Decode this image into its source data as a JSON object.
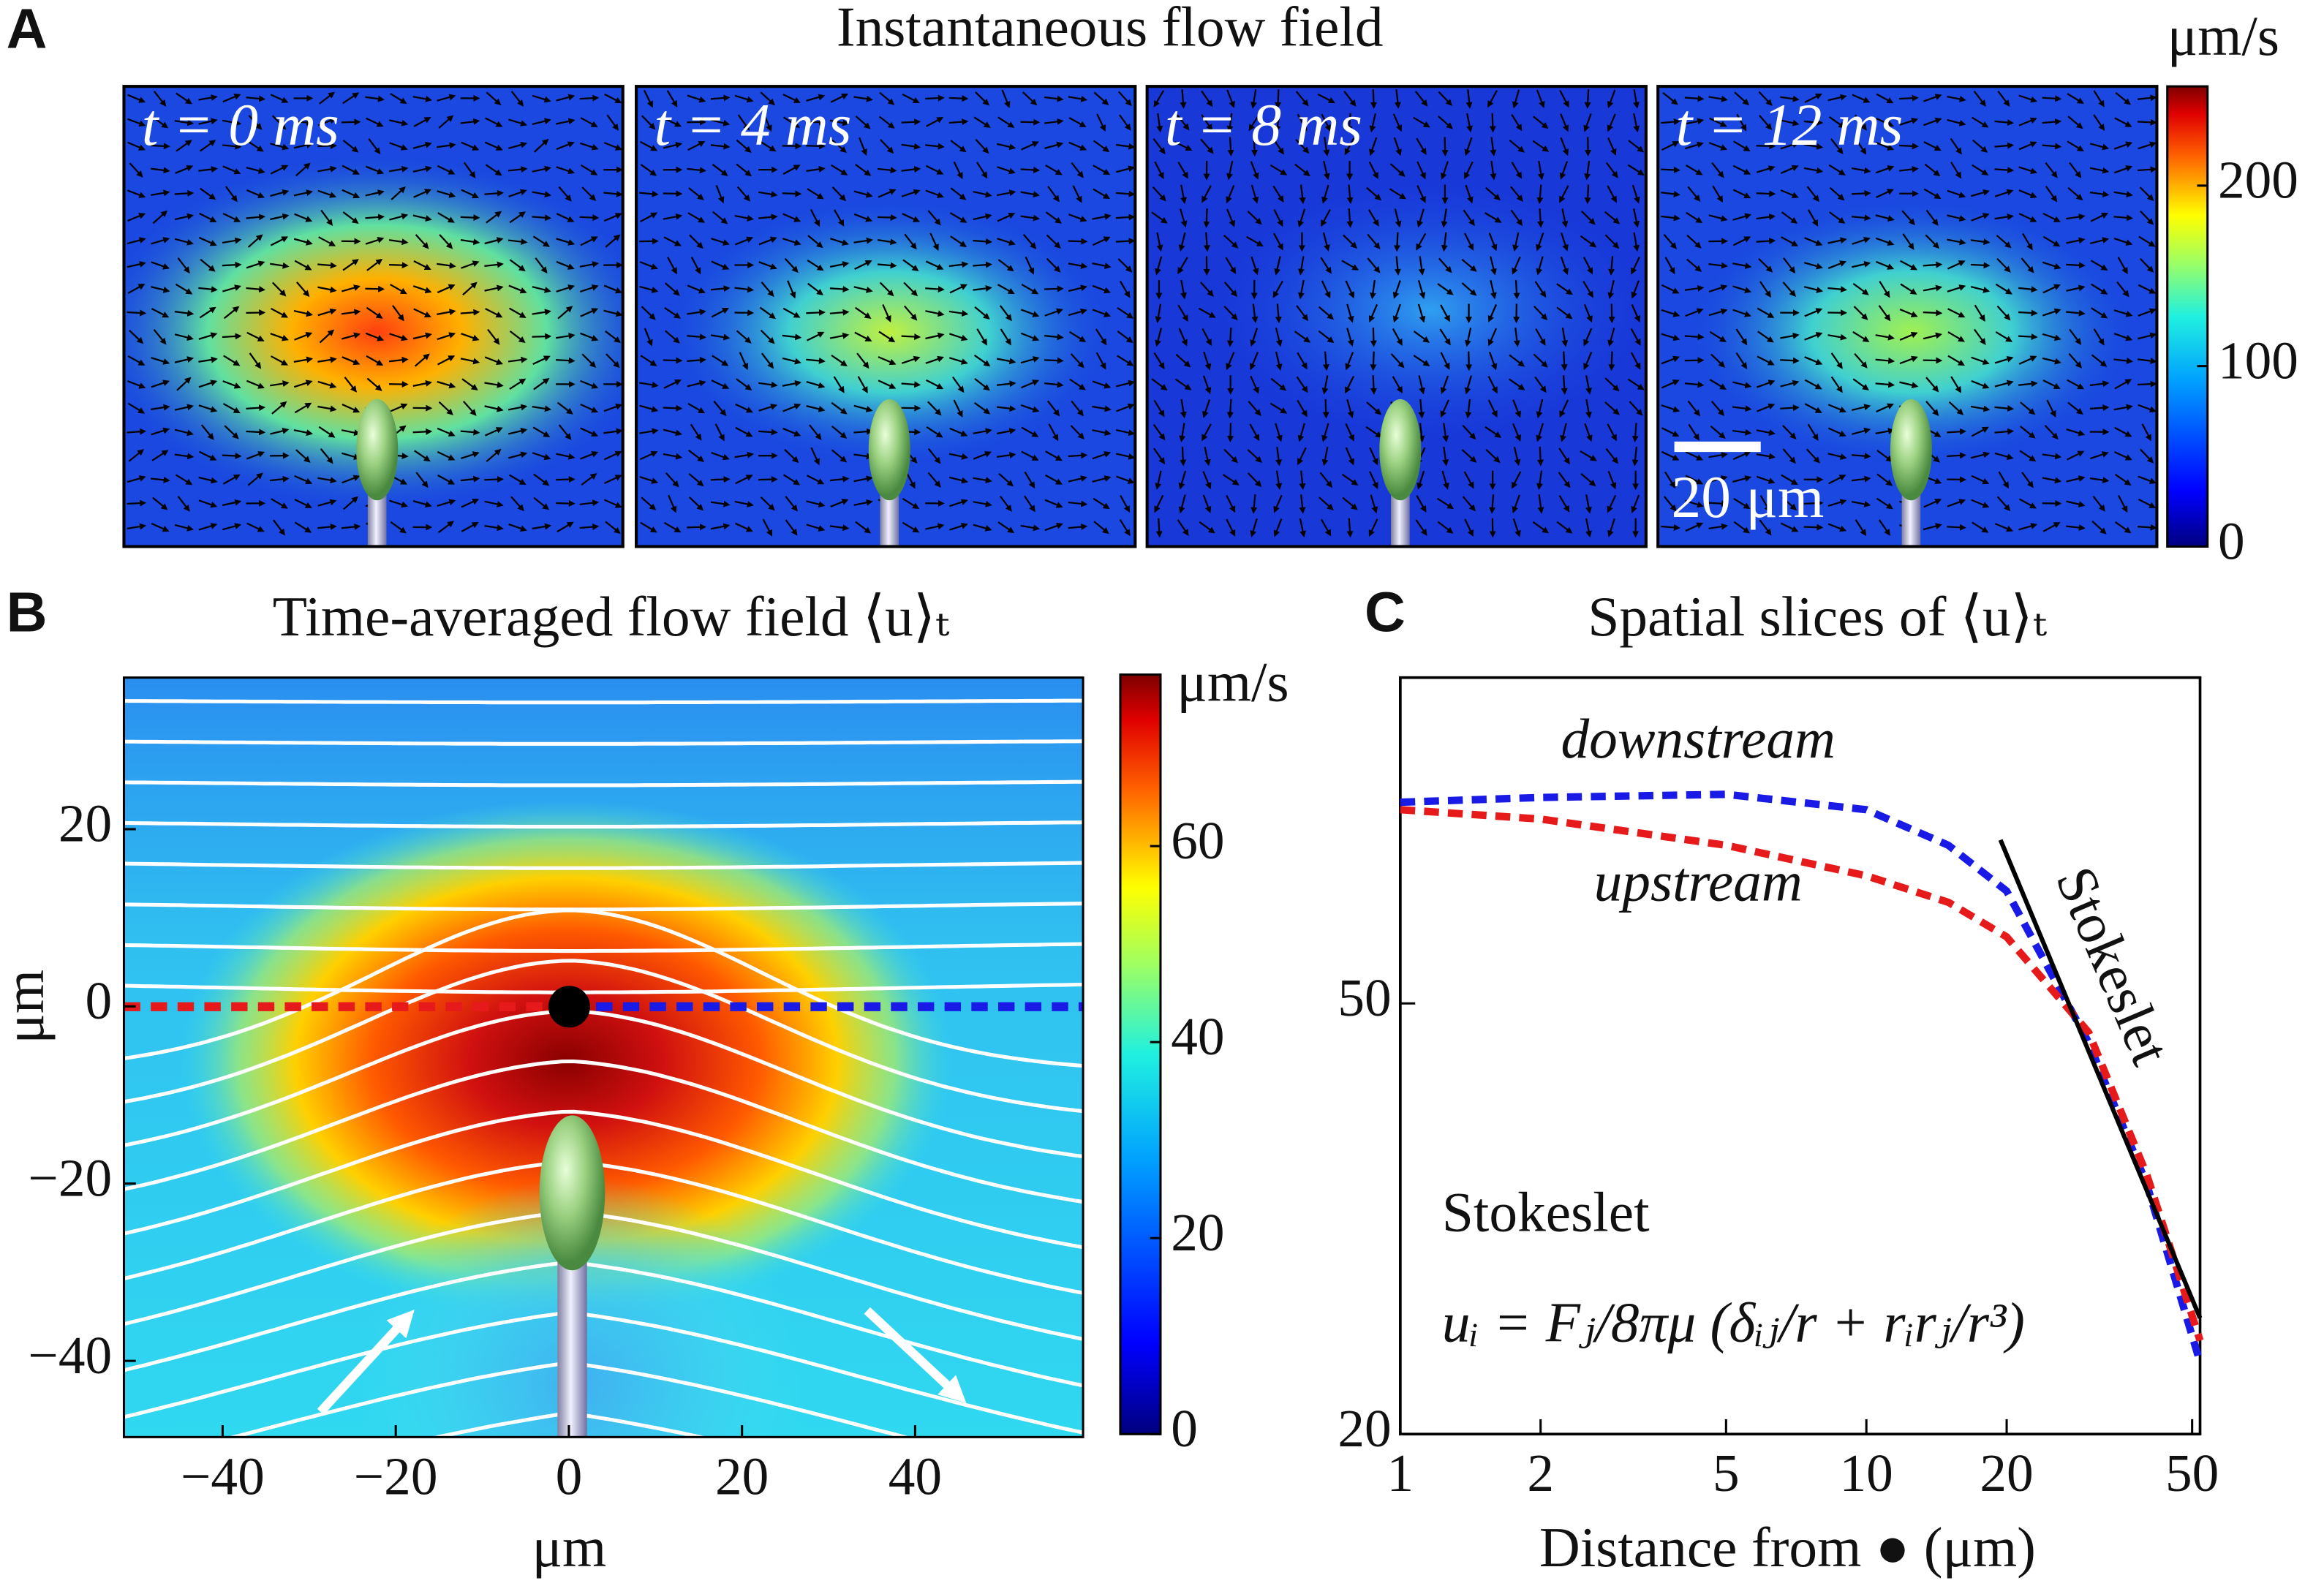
{
  "panel_labels": {
    "a": "A",
    "b": "B",
    "c": "C"
  },
  "panel_a": {
    "title": "Instantaneous flow field",
    "frames": [
      "t = 0 ms",
      "t = 4 ms",
      "t = 8 ms",
      "t = 12 ms"
    ],
    "scale_bar": "20 μm",
    "colorbar": {
      "label": "μm/s",
      "lim": [
        0,
        255
      ],
      "ticks": [
        0,
        100,
        200
      ]
    }
  },
  "chart_data": [
    {
      "type": "heatmap",
      "title": "Time-averaged flow field ⟨u⟩ₜ",
      "x_label": "μm",
      "y_label": "μm",
      "xlim": [
        -51.4,
        59.4
      ],
      "ylim": [
        -48.6,
        37.1
      ],
      "xticks": [
        {
          "value": -40,
          "label": "−40"
        },
        {
          "value": -20,
          "label": "−20"
        },
        0,
        20,
        40
      ],
      "yticks": [
        {
          "value": -40,
          "label": "−40"
        },
        {
          "value": -20,
          "label": "−20"
        },
        0,
        20
      ],
      "colorbar": {
        "label": "μm/s",
        "lim": [
          0,
          77.5
        ],
        "ticks": [
          0,
          20,
          40,
          60
        ]
      }
    },
    {
      "type": "line",
      "title": "Spatial slices of ⟨u⟩ₜ",
      "x_label": "Distance from ● (μm)",
      "log_x": true,
      "log_y": true,
      "xlim": [
        1,
        52
      ],
      "ylim": [
        20,
        100
      ],
      "xticks": [
        1,
        2,
        5,
        10,
        20,
        50
      ],
      "yticks": [
        20,
        50
      ],
      "x": [
        1,
        2,
        5,
        10,
        15,
        20,
        30,
        40,
        52
      ],
      "series": [
        {
          "name": "downstream",
          "color": "#1a1ae6",
          "values": [
            76.7,
            77.5,
            78,
            75.5,
            70,
            63.5,
            46,
            34,
            23.3
          ]
        },
        {
          "name": "upstream",
          "color": "#e61a1a",
          "values": [
            75.5,
            74,
            70,
            65.6,
            62,
            57.6,
            47,
            34.7,
            24.4
          ]
        }
      ],
      "reference_line": {
        "name": "Stokeslet",
        "color": "#000000",
        "x": [
          19.4,
          52
        ],
        "values": [
          70.8,
          25.6
        ]
      },
      "annotation": "Stokeslet",
      "formula": "uᵢ = Fⱼ/8πμ (δᵢⱼ/r + rᵢrⱼ/r³)"
    }
  ]
}
